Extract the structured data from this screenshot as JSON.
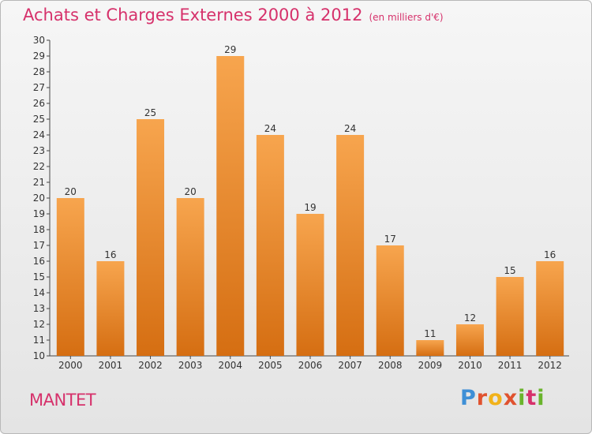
{
  "header": {
    "title": "Achats et Charges Externes 2000 à 2012",
    "subtitle": "(en milliers d'€)"
  },
  "footer": {
    "commune": "MANTET",
    "logo": "Proxiti"
  },
  "colors": {
    "bar_light": "#f7a54e",
    "bar_dark": "#d56e12",
    "title": "#d6316b"
  },
  "chart_data": {
    "type": "bar",
    "title": "Achats et Charges Externes 2000 à 2012",
    "subtitle": "(en milliers d'€)",
    "categories": [
      "2000",
      "2001",
      "2002",
      "2003",
      "2004",
      "2005",
      "2006",
      "2007",
      "2008",
      "2009",
      "2010",
      "2011",
      "2012"
    ],
    "values": [
      20,
      16,
      25,
      20,
      29,
      24,
      19,
      24,
      17,
      11,
      12,
      15,
      16
    ],
    "ylim": [
      10,
      30
    ],
    "yticks": [
      10,
      11,
      12,
      13,
      14,
      15,
      16,
      17,
      18,
      19,
      20,
      21,
      22,
      23,
      24,
      25,
      26,
      27,
      28,
      29,
      30
    ],
    "grid": false,
    "data_labels": true
  }
}
